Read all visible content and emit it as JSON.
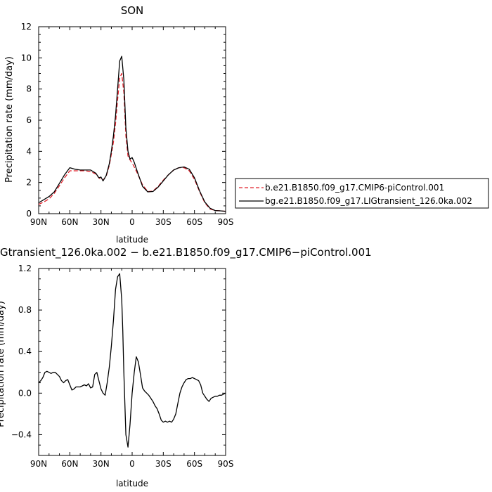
{
  "chart_data": [
    {
      "type": "line",
      "title": "SON",
      "xlabel": "latitude",
      "ylabel": "Precipitation rate (mm/day)",
      "xlim": [
        90,
        -90
      ],
      "ylim": [
        0,
        12
      ],
      "x_ticks": [
        {
          "value": 90,
          "label": "90N"
        },
        {
          "value": 60,
          "label": "60N"
        },
        {
          "value": 30,
          "label": "30N"
        },
        {
          "value": 0,
          "label": "0"
        },
        {
          "value": -30,
          "label": "30S"
        },
        {
          "value": -60,
          "label": "60S"
        },
        {
          "value": -90,
          "label": "90S"
        }
      ],
      "y_ticks": [
        {
          "value": 0,
          "label": "0"
        },
        {
          "value": 2,
          "label": "2"
        },
        {
          "value": 4,
          "label": "4"
        },
        {
          "value": 6,
          "label": "6"
        },
        {
          "value": 8,
          "label": "8"
        },
        {
          "value": 10,
          "label": "10"
        },
        {
          "value": 12,
          "label": "12"
        }
      ],
      "legend_position": "right",
      "series": [
        {
          "name": "b.e21.B1850.f09_g17.CMIP6-piControl.001",
          "color": "#e0202a",
          "dash": "dashed",
          "x": [
            90,
            85,
            80,
            75,
            70,
            65,
            60,
            55,
            50,
            45,
            40,
            35,
            32,
            30,
            28,
            25,
            22,
            20,
            18,
            16,
            14,
            12,
            10,
            8,
            6,
            4,
            2,
            0,
            -2,
            -5,
            -10,
            -15,
            -20,
            -25,
            -30,
            -35,
            -40,
            -45,
            -50,
            -55,
            -60,
            -65,
            -70,
            -75,
            -80,
            -85,
            -90
          ],
          "values": [
            0.6,
            0.75,
            0.95,
            1.3,
            1.8,
            2.3,
            2.75,
            2.75,
            2.75,
            2.75,
            2.7,
            2.55,
            2.3,
            2.2,
            2.15,
            2.4,
            3.1,
            3.8,
            4.6,
            5.8,
            7.3,
            8.7,
            9.0,
            7.8,
            5.0,
            3.7,
            3.45,
            3.25,
            3.0,
            2.6,
            1.85,
            1.42,
            1.45,
            1.75,
            2.15,
            2.5,
            2.8,
            2.95,
            2.95,
            2.75,
            2.2,
            1.4,
            0.7,
            0.3,
            0.2,
            0.18,
            0.15
          ]
        },
        {
          "name": "bg.e21.B1850.f09_g17.LIGtransient_126.0ka.002",
          "color": "#000000",
          "dash": "solid",
          "x": [
            90,
            85,
            80,
            75,
            70,
            65,
            60,
            55,
            50,
            45,
            40,
            35,
            32,
            30,
            28,
            25,
            22,
            20,
            18,
            16,
            14,
            12,
            10,
            8,
            6,
            4,
            2,
            0,
            -2,
            -5,
            -10,
            -15,
            -20,
            -25,
            -30,
            -35,
            -40,
            -45,
            -50,
            -55,
            -60,
            -65,
            -70,
            -75,
            -80,
            -85,
            -90
          ],
          "values": [
            0.7,
            0.9,
            1.1,
            1.4,
            1.95,
            2.5,
            2.95,
            2.85,
            2.8,
            2.8,
            2.8,
            2.6,
            2.3,
            2.35,
            2.1,
            2.45,
            3.2,
            4.0,
            5.0,
            6.3,
            8.0,
            9.8,
            10.1,
            8.6,
            5.5,
            4.0,
            3.5,
            3.6,
            3.3,
            2.7,
            1.75,
            1.4,
            1.42,
            1.7,
            2.1,
            2.5,
            2.8,
            2.95,
            3.0,
            2.85,
            2.3,
            1.45,
            0.75,
            0.35,
            0.2,
            0.18,
            0.15
          ]
        }
      ]
    },
    {
      "type": "line",
      "title": "Gtransient_126.0ka.002 − b.e21.B1850.f09_g17.CMIP6−piControl.001",
      "xlabel": "latitude",
      "ylabel": "Precipitation rate (mm/day)",
      "xlim": [
        90,
        -90
      ],
      "ylim": [
        -0.6,
        1.2
      ],
      "x_ticks": [
        {
          "value": 90,
          "label": "90N"
        },
        {
          "value": 60,
          "label": "60N"
        },
        {
          "value": 30,
          "label": "30N"
        },
        {
          "value": 0,
          "label": "0"
        },
        {
          "value": -30,
          "label": "30S"
        },
        {
          "value": -60,
          "label": "60S"
        },
        {
          "value": -90,
          "label": "90S"
        }
      ],
      "y_ticks": [
        {
          "value": -0.4,
          "label": "−0.4"
        },
        {
          "value": 0.0,
          "label": "0.0"
        },
        {
          "value": 0.4,
          "label": "0.4"
        },
        {
          "value": 0.8,
          "label": "0.8"
        },
        {
          "value": 1.2,
          "label": "1.2"
        }
      ],
      "series": [
        {
          "color": "#000000",
          "dash": "solid",
          "x": [
            90,
            88,
            86,
            84,
            82,
            80,
            78,
            76,
            74,
            72,
            70,
            68,
            66,
            64,
            62,
            60,
            58,
            56,
            54,
            52,
            50,
            48,
            46,
            44,
            42,
            40,
            38,
            36,
            34,
            32,
            30,
            28,
            26,
            24,
            22,
            20,
            18,
            16,
            14,
            12,
            10,
            9,
            8,
            6,
            4,
            2,
            0,
            -2,
            -4,
            -6,
            -8,
            -10,
            -12,
            -14,
            -16,
            -18,
            -20,
            -22,
            -24,
            -26,
            -28,
            -30,
            -32,
            -34,
            -36,
            -38,
            -40,
            -42,
            -44,
            -46,
            -48,
            -50,
            -52,
            -54,
            -56,
            -58,
            -60,
            -62,
            -64,
            -66,
            -68,
            -70,
            -72,
            -74,
            -76,
            -78,
            -80,
            -82,
            -84,
            -86,
            -88,
            -90
          ],
          "values": [
            0.1,
            0.12,
            0.15,
            0.2,
            0.21,
            0.2,
            0.19,
            0.2,
            0.2,
            0.18,
            0.16,
            0.12,
            0.1,
            0.12,
            0.13,
            0.08,
            0.03,
            0.04,
            0.06,
            0.06,
            0.06,
            0.07,
            0.08,
            0.07,
            0.09,
            0.05,
            0.06,
            0.18,
            0.2,
            0.12,
            0.04,
            0.0,
            -0.02,
            0.1,
            0.25,
            0.45,
            0.7,
            1.0,
            1.12,
            1.15,
            0.9,
            0.6,
            0.2,
            -0.4,
            -0.52,
            -0.3,
            0.0,
            0.2,
            0.35,
            0.3,
            0.18,
            0.05,
            0.02,
            0.0,
            -0.02,
            -0.05,
            -0.08,
            -0.12,
            -0.15,
            -0.2,
            -0.26,
            -0.28,
            -0.27,
            -0.28,
            -0.27,
            -0.28,
            -0.25,
            -0.2,
            -0.1,
            0.0,
            0.06,
            0.1,
            0.13,
            0.14,
            0.14,
            0.15,
            0.14,
            0.13,
            0.12,
            0.08,
            0.0,
            -0.03,
            -0.06,
            -0.08,
            -0.05,
            -0.04,
            -0.03,
            -0.03,
            -0.02,
            -0.02,
            -0.01,
            0.0
          ]
        }
      ]
    }
  ]
}
